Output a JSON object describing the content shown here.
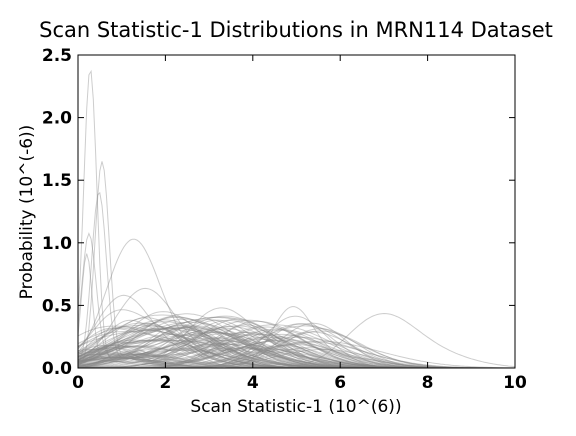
{
  "chart_data": {
    "type": "line",
    "title": "Scan Statistic-1 Distributions in MRN114 Dataset",
    "xlabel": "Scan Statistic-1 (10^(6))",
    "ylabel": "Probability (10^(-6))",
    "xlim": [
      0,
      10
    ],
    "ylim": [
      0,
      2.5
    ],
    "xticks": [
      "0",
      "2",
      "4",
      "6",
      "8",
      "10"
    ],
    "yticks": [
      "0.0",
      "0.5",
      "1.0",
      "1.5",
      "2.0",
      "2.5"
    ],
    "grid": false,
    "legend": "none",
    "series_count": 114,
    "line_color": "#888888",
    "highlighted_peaks": [
      {
        "x": 0.28,
        "y": 2.43
      },
      {
        "x": 0.55,
        "y": 1.66
      },
      {
        "x": 0.48,
        "y": 1.41
      },
      {
        "x": 1.25,
        "y": 1.02
      },
      {
        "x": 0.25,
        "y": 1.06
      },
      {
        "x": 0.2,
        "y": 0.9
      },
      {
        "x": 1.5,
        "y": 0.62
      },
      {
        "x": 1.0,
        "y": 0.55
      },
      {
        "x": 6.9,
        "y": 0.4
      },
      {
        "x": 4.9,
        "y": 0.47
      },
      {
        "x": 3.2,
        "y": 0.45
      }
    ]
  }
}
